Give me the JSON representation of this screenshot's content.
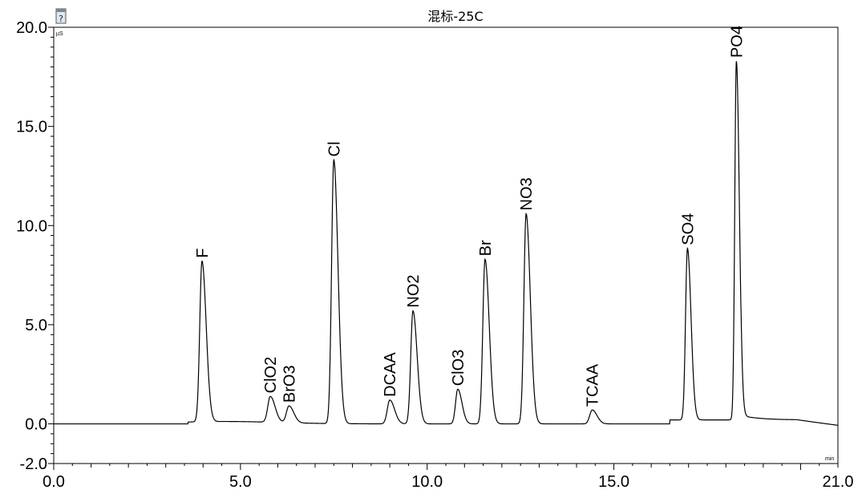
{
  "chart_data": {
    "type": "line",
    "title": "混标-25C",
    "y_unit": "µS",
    "x_unit": "min",
    "xlim": [
      0.0,
      21.0
    ],
    "ylim": [
      -2.0,
      20.0
    ],
    "x_ticks": [
      "0.0",
      "5.0",
      "10.0",
      "15.0",
      "21.0"
    ],
    "y_ticks": [
      "-2.0",
      "0.0",
      "5.0",
      "10.0",
      "15.0",
      "20.0"
    ],
    "baseline": 0.0,
    "peaks": [
      {
        "label": "F",
        "x": 3.97,
        "y": 8.1,
        "width": 0.07
      },
      {
        "label": "ClO2",
        "x": 5.8,
        "y": 1.3,
        "width": 0.08
      },
      {
        "label": "BrO3",
        "x": 6.3,
        "y": 0.85,
        "width": 0.08
      },
      {
        "label": "Cl",
        "x": 7.5,
        "y": 13.3,
        "width": 0.07
      },
      {
        "label": "DCAA",
        "x": 9.0,
        "y": 1.2,
        "width": 0.08
      },
      {
        "label": "NO2",
        "x": 9.62,
        "y": 5.7,
        "width": 0.07
      },
      {
        "label": "ClO3",
        "x": 10.82,
        "y": 1.75,
        "width": 0.07
      },
      {
        "label": "Br",
        "x": 11.55,
        "y": 8.3,
        "width": 0.07
      },
      {
        "label": "NO3",
        "x": 12.65,
        "y": 10.6,
        "width": 0.07
      },
      {
        "label": "TCAA",
        "x": 14.42,
        "y": 0.7,
        "width": 0.08
      },
      {
        "label": "SO4",
        "x": 16.97,
        "y": 8.65,
        "width": 0.06
      },
      {
        "label": "PO4",
        "x": 18.28,
        "y": 18.1,
        "width": 0.05
      }
    ]
  },
  "icon": "document-help-icon"
}
